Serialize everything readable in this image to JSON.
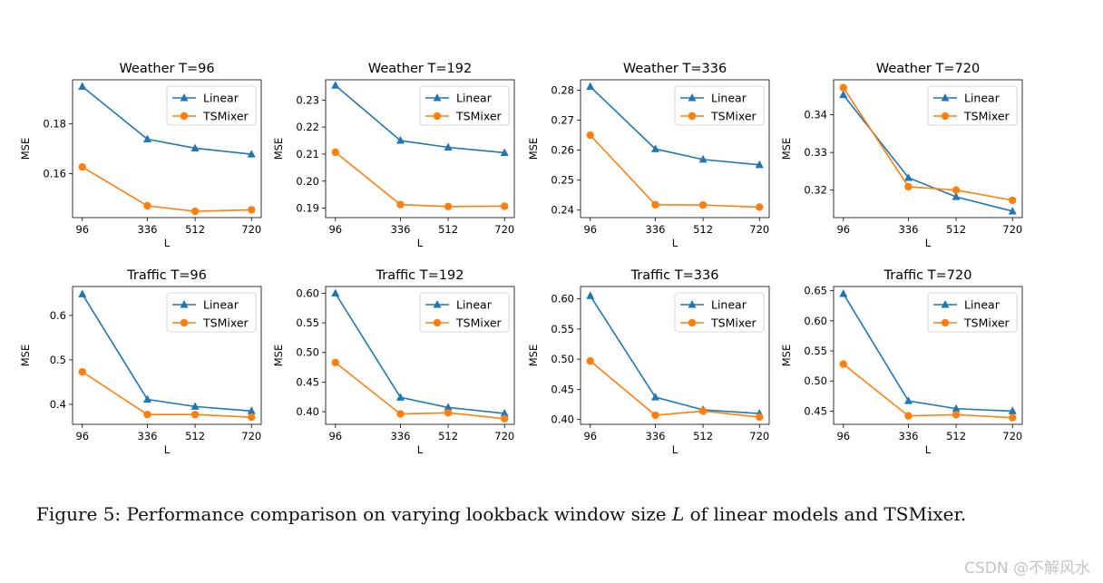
{
  "caption": {
    "prefix": "Figure 5: Performance comparison on varying lookback window size ",
    "var": "L",
    "suffix": " of linear models and TSMixer."
  },
  "watermark": "CSDN @不解风水",
  "colors": {
    "linear": "#1f77b4",
    "tsmixer": "#ff7f0e"
  },
  "chart_data": [
    {
      "type": "line",
      "title": "Weather T=96",
      "xlabel": "L",
      "ylabel": "MSE",
      "x": [
        96,
        336,
        512,
        720
      ],
      "xlim": [
        60,
        756
      ],
      "ylim": [
        0.1425,
        0.1975
      ],
      "yticks": [
        "0.16",
        "0.18"
      ],
      "ytick_values": [
        0.16,
        0.18
      ],
      "legend": "upper right",
      "series": [
        {
          "name": "Linear",
          "marker": "triangle",
          "values": [
            0.1948,
            0.1738,
            0.1702,
            0.1678
          ]
        },
        {
          "name": "TSMixer",
          "marker": "circle",
          "values": [
            0.1627,
            0.1472,
            0.145,
            0.1456
          ]
        }
      ]
    },
    {
      "type": "line",
      "title": "Weather T=192",
      "xlabel": "L",
      "ylabel": "MSE",
      "x": [
        96,
        336,
        512,
        720
      ],
      "xlim": [
        60,
        756
      ],
      "ylim": [
        0.1865,
        0.2375
      ],
      "yticks": [
        "0.19",
        "0.20",
        "0.21",
        "0.22",
        "0.23"
      ],
      "ytick_values": [
        0.19,
        0.2,
        0.21,
        0.22,
        0.23
      ],
      "legend": "upper right",
      "series": [
        {
          "name": "Linear",
          "marker": "triangle",
          "values": [
            0.2354,
            0.215,
            0.2125,
            0.2105
          ]
        },
        {
          "name": "TSMixer",
          "marker": "circle",
          "values": [
            0.2107,
            0.1913,
            0.1906,
            0.1907
          ]
        }
      ]
    },
    {
      "type": "line",
      "title": "Weather T=336",
      "xlabel": "L",
      "ylabel": "MSE",
      "x": [
        96,
        336,
        512,
        720
      ],
      "xlim": [
        60,
        756
      ],
      "ylim": [
        0.2375,
        0.2835
      ],
      "yticks": [
        "0.24",
        "0.25",
        "0.26",
        "0.27",
        "0.28"
      ],
      "ytick_values": [
        0.24,
        0.25,
        0.26,
        0.27,
        0.28
      ],
      "legend": "upper right",
      "series": [
        {
          "name": "Linear",
          "marker": "triangle",
          "values": [
            0.2812,
            0.2604,
            0.2569,
            0.2551
          ]
        },
        {
          "name": "TSMixer",
          "marker": "circle",
          "values": [
            0.265,
            0.2418,
            0.2417,
            0.241
          ]
        }
      ]
    },
    {
      "type": "line",
      "title": "Weather T=720",
      "xlabel": "L",
      "ylabel": "MSE",
      "x": [
        96,
        336,
        512,
        720
      ],
      "xlim": [
        60,
        756
      ],
      "ylim": [
        0.3127,
        0.3493
      ],
      "yticks": [
        "0.32",
        "0.33",
        "0.34"
      ],
      "ytick_values": [
        0.32,
        0.33,
        0.34
      ],
      "legend": "upper right",
      "series": [
        {
          "name": "Linear",
          "marker": "triangle",
          "values": [
            0.3453,
            0.3233,
            0.3182,
            0.3144
          ]
        },
        {
          "name": "TSMixer",
          "marker": "circle",
          "values": [
            0.3472,
            0.3209,
            0.32,
            0.3173
          ]
        }
      ]
    },
    {
      "type": "line",
      "title": "Traffic T=96",
      "xlabel": "L",
      "ylabel": "MSE",
      "x": [
        96,
        336,
        512,
        720
      ],
      "xlim": [
        60,
        756
      ],
      "ylim": [
        0.355,
        0.665
      ],
      "yticks": [
        "0.4",
        "0.5",
        "0.6"
      ],
      "ytick_values": [
        0.4,
        0.5,
        0.6
      ],
      "legend": "upper right",
      "series": [
        {
          "name": "Linear",
          "marker": "triangle",
          "values": [
            0.648,
            0.411,
            0.395,
            0.385
          ]
        },
        {
          "name": "TSMixer",
          "marker": "circle",
          "values": [
            0.473,
            0.377,
            0.377,
            0.371
          ]
        }
      ]
    },
    {
      "type": "line",
      "title": "Traffic T=192",
      "xlabel": "L",
      "ylabel": "MSE",
      "x": [
        96,
        336,
        512,
        720
      ],
      "xlim": [
        60,
        756
      ],
      "ylim": [
        0.3785,
        0.6115
      ],
      "yticks": [
        "0.40",
        "0.45",
        "0.50",
        "0.55",
        "0.60"
      ],
      "ytick_values": [
        0.4,
        0.45,
        0.5,
        0.55,
        0.6
      ],
      "legend": "upper right",
      "series": [
        {
          "name": "Linear",
          "marker": "triangle",
          "values": [
            0.6,
            0.424,
            0.407,
            0.397
          ]
        },
        {
          "name": "TSMixer",
          "marker": "circle",
          "values": [
            0.483,
            0.396,
            0.398,
            0.388
          ]
        }
      ]
    },
    {
      "type": "line",
      "title": "Traffic T=336",
      "xlabel": "L",
      "ylabel": "MSE",
      "x": [
        96,
        336,
        512,
        720
      ],
      "xlim": [
        60,
        756
      ],
      "ylim": [
        0.392,
        0.6205
      ],
      "yticks": [
        "0.40",
        "0.45",
        "0.50",
        "0.55",
        "0.60"
      ],
      "ytick_values": [
        0.4,
        0.45,
        0.5,
        0.55,
        0.6
      ],
      "legend": "upper right",
      "series": [
        {
          "name": "Linear",
          "marker": "triangle",
          "values": [
            0.605,
            0.437,
            0.416,
            0.41
          ]
        },
        {
          "name": "TSMixer",
          "marker": "circle",
          "values": [
            0.497,
            0.407,
            0.414,
            0.404
          ]
        }
      ]
    },
    {
      "type": "line",
      "title": "Traffic T=720",
      "xlabel": "L",
      "ylabel": "MSE",
      "x": [
        96,
        336,
        512,
        720
      ],
      "xlim": [
        60,
        756
      ],
      "ylim": [
        0.428,
        0.657
      ],
      "yticks": [
        "0.45",
        "0.50",
        "0.55",
        "0.60",
        "0.65"
      ],
      "ytick_values": [
        0.45,
        0.5,
        0.55,
        0.6,
        0.65
      ],
      "legend": "upper right",
      "series": [
        {
          "name": "Linear",
          "marker": "triangle",
          "values": [
            0.645,
            0.467,
            0.454,
            0.45
          ]
        },
        {
          "name": "TSMixer",
          "marker": "circle",
          "values": [
            0.528,
            0.442,
            0.444,
            0.439
          ]
        }
      ]
    }
  ]
}
